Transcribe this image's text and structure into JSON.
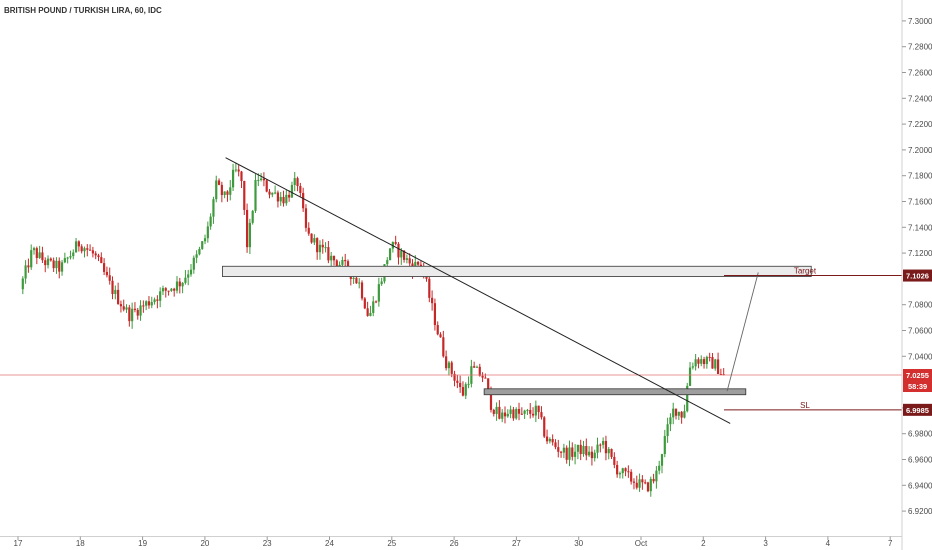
{
  "chart_data": {
    "type": "candlestick",
    "title": "BRITISH POUND / TURKISH LIRA, 60, IDC",
    "ylim": [
      6.91,
      7.31
    ],
    "y_ticks": [
      "7.3000",
      "7.2800",
      "7.2600",
      "7.2400",
      "7.2200",
      "7.2000",
      "7.1800",
      "7.1600",
      "7.1400",
      "7.1200",
      "7.0800",
      "7.0600",
      "7.0400",
      "7.0000",
      "6.9800",
      "6.9600",
      "6.9400",
      "6.9200"
    ],
    "x_ticks": [
      "17",
      "18",
      "19",
      "20",
      "23",
      "24",
      "25",
      "26",
      "27",
      "30",
      "Oct",
      "2",
      "3",
      "4",
      "7"
    ],
    "colors": {
      "up": "#3d9a3d",
      "down": "#c62828",
      "line": "#222222",
      "level": "#7a1a1a",
      "zone_fill": "#ebebeb",
      "zone_fill_dark": "#9e9e9e",
      "current": "#e57373"
    },
    "waypoints": [
      [
        0.0,
        7.092
      ],
      [
        0.2,
        7.122
      ],
      [
        0.4,
        7.113
      ],
      [
        0.65,
        7.108
      ],
      [
        0.95,
        7.128
      ],
      [
        1.2,
        7.118
      ],
      [
        1.5,
        7.09
      ],
      [
        1.75,
        7.072
      ],
      [
        2.0,
        7.08
      ],
      [
        2.3,
        7.09
      ],
      [
        2.6,
        7.098
      ],
      [
        2.85,
        7.118
      ],
      [
        3.0,
        7.135
      ],
      [
        3.15,
        7.172
      ],
      [
        3.3,
        7.162
      ],
      [
        3.45,
        7.184
      ],
      [
        3.55,
        7.178
      ],
      [
        3.65,
        7.124
      ],
      [
        3.8,
        7.18
      ],
      [
        4.0,
        7.168
      ],
      [
        4.25,
        7.162
      ],
      [
        4.45,
        7.176
      ],
      [
        4.6,
        7.135
      ],
      [
        4.8,
        7.124
      ],
      [
        5.0,
        7.116
      ],
      [
        5.25,
        7.108
      ],
      [
        5.45,
        7.096
      ],
      [
        5.6,
        7.07
      ],
      [
        5.8,
        7.1
      ],
      [
        5.95,
        7.126
      ],
      [
        6.1,
        7.12
      ],
      [
        6.3,
        7.11
      ],
      [
        6.45,
        7.112
      ],
      [
        6.55,
        7.09
      ],
      [
        6.7,
        7.06
      ],
      [
        6.85,
        7.034
      ],
      [
        7.0,
        7.022
      ],
      [
        7.1,
        7.01
      ],
      [
        7.25,
        7.03
      ],
      [
        7.45,
        7.024
      ],
      [
        7.55,
        7.004
      ],
      [
        7.7,
        6.992
      ],
      [
        7.85,
        6.998
      ],
      [
        8.05,
        6.994
      ],
      [
        8.3,
        6.998
      ],
      [
        8.45,
        6.976
      ],
      [
        8.65,
        6.968
      ],
      [
        8.8,
        6.964
      ],
      [
        9.0,
        6.968
      ],
      [
        9.2,
        6.962
      ],
      [
        9.35,
        6.974
      ],
      [
        9.55,
        6.954
      ],
      [
        9.7,
        6.948
      ],
      [
        9.9,
        6.942
      ],
      [
        10.05,
        6.938
      ],
      [
        10.2,
        6.946
      ],
      [
        10.35,
        6.976
      ],
      [
        10.5,
        7.0
      ],
      [
        10.65,
        6.994
      ],
      [
        10.75,
        7.032
      ],
      [
        10.85,
        7.038
      ],
      [
        11.0,
        7.036
      ],
      [
        11.15,
        7.034
      ],
      [
        11.3,
        7.025
      ]
    ],
    "trendline": {
      "from": [
        3.3,
        7.194
      ],
      "to": [
        11.4,
        6.988
      ]
    },
    "resistance_zone": {
      "from_x": 3.25,
      "to_x": 12.7,
      "y_top": 7.1098,
      "y_bottom": 7.1018
    },
    "support_zone": {
      "from_x": 7.45,
      "to_x": 11.65,
      "y_top": 7.0148,
      "y_bottom": 7.0102
    },
    "projection": {
      "from": [
        11.35,
        7.013
      ],
      "to": [
        11.85,
        7.105
      ]
    },
    "target": {
      "label": "Target",
      "value": "7.1026",
      "from_x": 11.3
    },
    "stop_loss": {
      "label": "SL",
      "value": "6.9985",
      "from_x": 11.3
    },
    "current_price": {
      "value": "7.0255",
      "countdown": "58:39"
    }
  }
}
